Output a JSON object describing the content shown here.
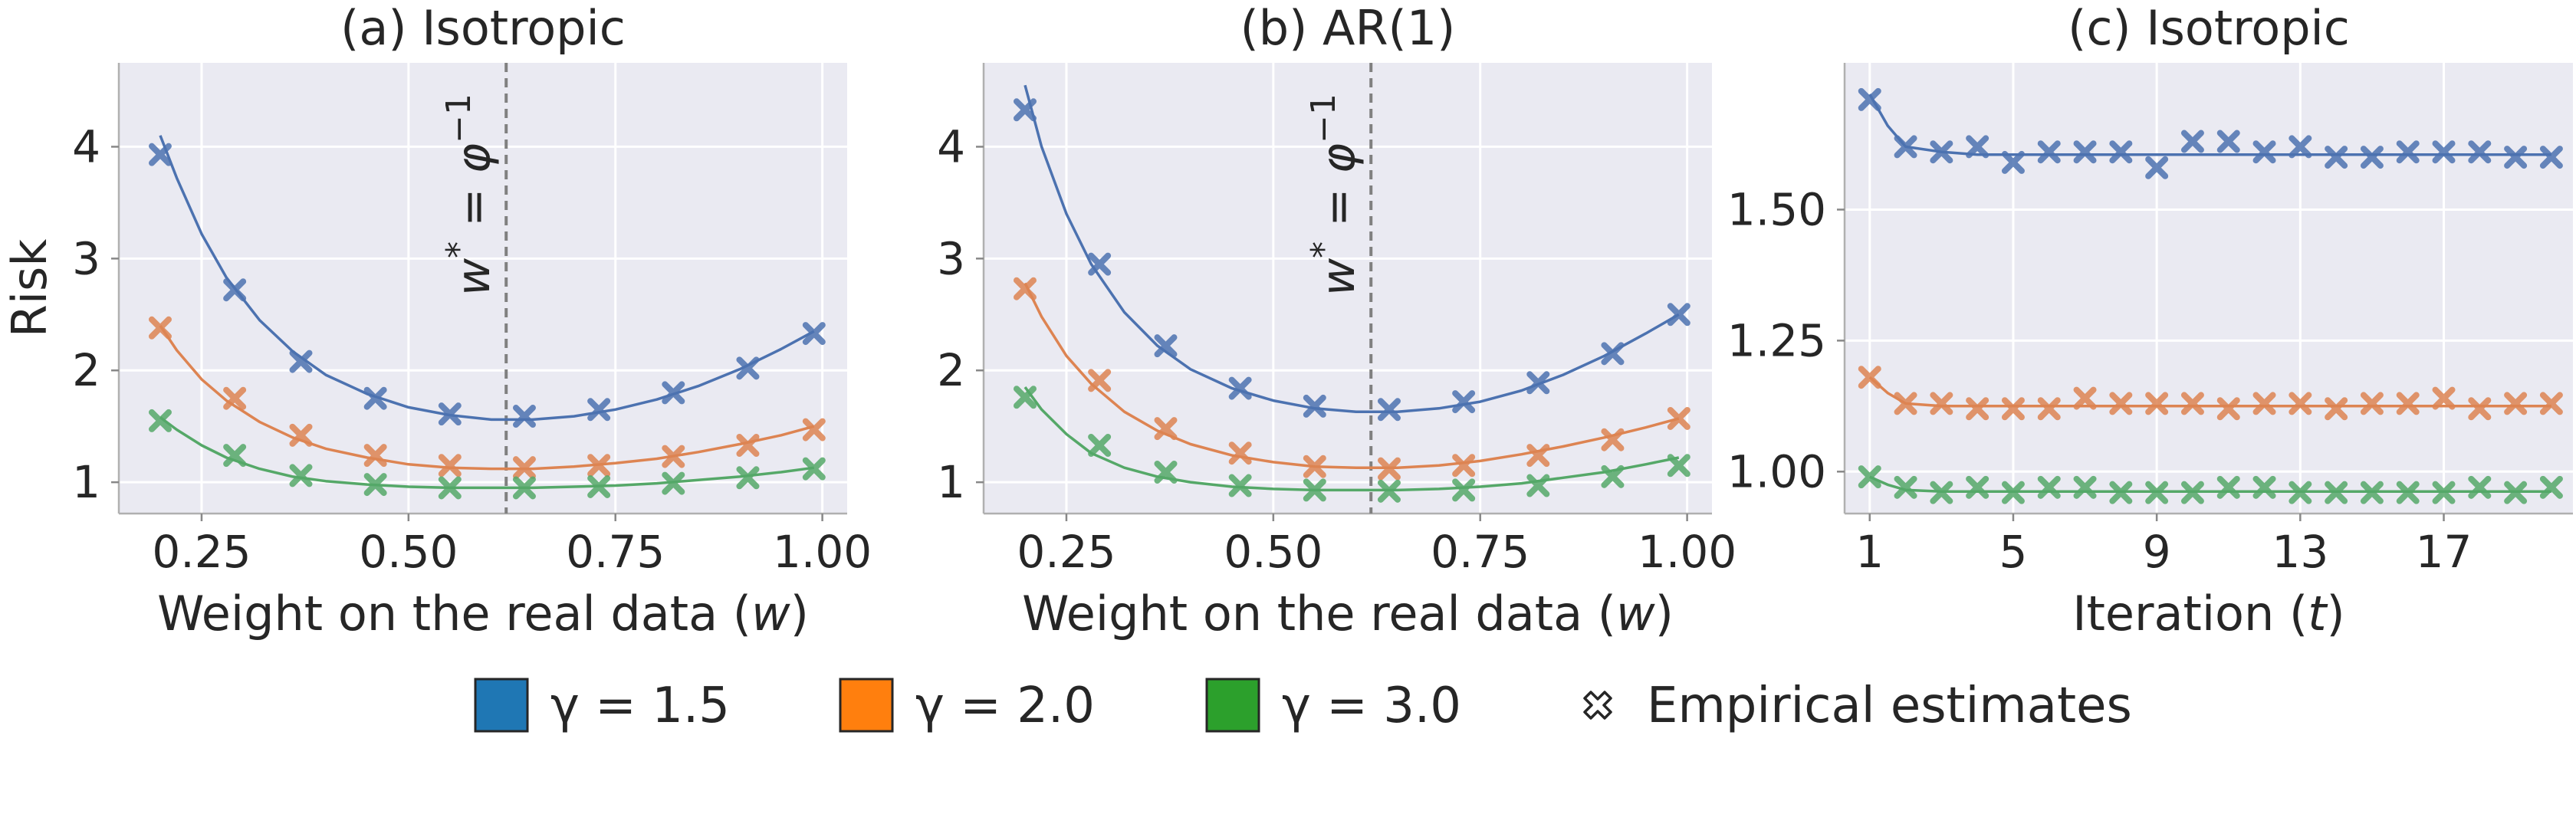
{
  "colors": {
    "plot_background": "#eaeaf2",
    "grid": "#ffffff",
    "gamma_1_5": "#4c72b0",
    "gamma_2_0": "#dd8452",
    "gamma_3_0": "#55a868",
    "legend_gamma_1_5": "#1f77b4",
    "legend_gamma_2_0": "#ff7f0e",
    "legend_gamma_3_0": "#2ca02c",
    "vline": "#808080"
  },
  "legend": {
    "entries": [
      {
        "label": "γ = 1.5",
        "color_key": "legend_gamma_1_5"
      },
      {
        "label": "γ = 2.0",
        "color_key": "legend_gamma_2_0"
      },
      {
        "label": "γ = 3.0",
        "color_key": "legend_gamma_3_0"
      }
    ],
    "marker_label": "Empirical estimates",
    "placement": "bottom-center"
  },
  "chart_data": [
    {
      "type": "line",
      "title": "(a) Isotropic",
      "xlabel": "Weight on the real data (w)",
      "ylabel": "Risk",
      "xlim": [
        0.15,
        1.03
      ],
      "ylim": [
        0.72,
        4.75
      ],
      "xticks": [
        0.25,
        0.5,
        0.75,
        1.0
      ],
      "xtick_labels": [
        "0.25",
        "0.50",
        "0.75",
        "1.00"
      ],
      "yticks": [
        1,
        2,
        3,
        4
      ],
      "ytick_labels": [
        "1",
        "2",
        "3",
        "4"
      ],
      "vline": {
        "x": 0.618,
        "label": "w* = φ⁻¹"
      },
      "series": [
        {
          "name": "γ = 1.5",
          "color_key": "gamma_1_5",
          "curve_x": [
            0.2,
            0.22,
            0.25,
            0.28,
            0.32,
            0.36,
            0.4,
            0.45,
            0.5,
            0.55,
            0.6,
            0.65,
            0.7,
            0.75,
            0.8,
            0.85,
            0.9,
            0.95,
            0.99
          ],
          "curve_y": [
            4.1,
            3.72,
            3.22,
            2.83,
            2.45,
            2.17,
            1.96,
            1.79,
            1.67,
            1.6,
            1.56,
            1.56,
            1.59,
            1.65,
            1.74,
            1.86,
            2.01,
            2.19,
            2.35
          ],
          "points_x": [
            0.2,
            0.29,
            0.37,
            0.46,
            0.55,
            0.64,
            0.73,
            0.82,
            0.91,
            0.99
          ],
          "points_y": [
            3.93,
            2.72,
            2.08,
            1.75,
            1.61,
            1.59,
            1.65,
            1.8,
            2.02,
            2.33
          ]
        },
        {
          "name": "γ = 2.0",
          "color_key": "gamma_2_0",
          "curve_x": [
            0.2,
            0.22,
            0.25,
            0.28,
            0.32,
            0.36,
            0.4,
            0.45,
            0.5,
            0.55,
            0.6,
            0.65,
            0.7,
            0.75,
            0.8,
            0.85,
            0.9,
            0.95,
            0.99
          ],
          "curve_y": [
            2.4,
            2.18,
            1.92,
            1.73,
            1.54,
            1.4,
            1.3,
            1.22,
            1.16,
            1.13,
            1.12,
            1.12,
            1.14,
            1.17,
            1.21,
            1.27,
            1.34,
            1.42,
            1.5
          ],
          "points_x": [
            0.2,
            0.29,
            0.37,
            0.46,
            0.55,
            0.64,
            0.73,
            0.82,
            0.91,
            0.99
          ],
          "points_y": [
            2.38,
            1.75,
            1.42,
            1.24,
            1.15,
            1.13,
            1.15,
            1.23,
            1.33,
            1.47
          ]
        },
        {
          "name": "γ = 3.0",
          "color_key": "gamma_3_0",
          "curve_x": [
            0.2,
            0.22,
            0.25,
            0.28,
            0.32,
            0.36,
            0.4,
            0.45,
            0.5,
            0.55,
            0.6,
            0.65,
            0.7,
            0.75,
            0.8,
            0.85,
            0.9,
            0.95,
            0.99
          ],
          "curve_y": [
            1.58,
            1.47,
            1.33,
            1.22,
            1.12,
            1.05,
            1.01,
            0.98,
            0.96,
            0.95,
            0.95,
            0.95,
            0.96,
            0.97,
            0.99,
            1.02,
            1.05,
            1.09,
            1.13
          ],
          "points_x": [
            0.2,
            0.29,
            0.37,
            0.46,
            0.55,
            0.64,
            0.73,
            0.82,
            0.91,
            0.99
          ],
          "points_y": [
            1.55,
            1.24,
            1.06,
            0.98,
            0.95,
            0.95,
            0.96,
            0.99,
            1.04,
            1.12
          ]
        }
      ]
    },
    {
      "type": "line",
      "title": "(b) AR(1)",
      "xlabel": "Weight on the real data (w)",
      "ylabel": "",
      "xlim": [
        0.15,
        1.03
      ],
      "ylim": [
        0.72,
        4.75
      ],
      "xticks": [
        0.25,
        0.5,
        0.75,
        1.0
      ],
      "xtick_labels": [
        "0.25",
        "0.50",
        "0.75",
        "1.00"
      ],
      "yticks": [
        1,
        2,
        3,
        4
      ],
      "ytick_labels": [
        "1",
        "2",
        "3",
        "4"
      ],
      "vline": {
        "x": 0.618,
        "label": "w* = φ⁻¹"
      },
      "series": [
        {
          "name": "γ = 1.5",
          "color_key": "gamma_1_5",
          "curve_x": [
            0.2,
            0.22,
            0.25,
            0.28,
            0.32,
            0.36,
            0.4,
            0.45,
            0.5,
            0.55,
            0.6,
            0.65,
            0.7,
            0.75,
            0.8,
            0.85,
            0.9,
            0.95,
            0.99
          ],
          "curve_y": [
            4.55,
            4.0,
            3.4,
            2.95,
            2.52,
            2.22,
            2.01,
            1.84,
            1.73,
            1.66,
            1.63,
            1.63,
            1.66,
            1.72,
            1.82,
            1.96,
            2.13,
            2.33,
            2.5
          ],
          "points_x": [
            0.2,
            0.29,
            0.37,
            0.46,
            0.55,
            0.64,
            0.73,
            0.82,
            0.91,
            0.99
          ],
          "points_y": [
            4.33,
            2.95,
            2.22,
            1.84,
            1.68,
            1.65,
            1.72,
            1.89,
            2.15,
            2.5
          ]
        },
        {
          "name": "γ = 2.0",
          "color_key": "gamma_2_0",
          "curve_x": [
            0.2,
            0.22,
            0.25,
            0.28,
            0.32,
            0.36,
            0.4,
            0.45,
            0.5,
            0.55,
            0.6,
            0.65,
            0.7,
            0.75,
            0.8,
            0.85,
            0.9,
            0.95,
            0.99
          ],
          "curve_y": [
            2.78,
            2.48,
            2.13,
            1.88,
            1.63,
            1.46,
            1.34,
            1.24,
            1.18,
            1.14,
            1.13,
            1.13,
            1.15,
            1.19,
            1.25,
            1.32,
            1.4,
            1.49,
            1.57
          ],
          "points_x": [
            0.2,
            0.29,
            0.37,
            0.46,
            0.55,
            0.64,
            0.73,
            0.82,
            0.91,
            0.99
          ],
          "points_y": [
            2.73,
            1.91,
            1.48,
            1.26,
            1.14,
            1.12,
            1.15,
            1.24,
            1.38,
            1.57
          ]
        },
        {
          "name": "γ = 3.0",
          "color_key": "gamma_3_0",
          "curve_x": [
            0.2,
            0.22,
            0.25,
            0.28,
            0.32,
            0.36,
            0.4,
            0.45,
            0.5,
            0.55,
            0.6,
            0.65,
            0.7,
            0.75,
            0.8,
            0.85,
            0.9,
            0.95,
            0.99
          ],
          "curve_y": [
            1.85,
            1.65,
            1.43,
            1.26,
            1.13,
            1.05,
            1.0,
            0.96,
            0.94,
            0.93,
            0.93,
            0.93,
            0.94,
            0.96,
            0.99,
            1.04,
            1.09,
            1.16,
            1.22
          ],
          "points_x": [
            0.2,
            0.29,
            0.37,
            0.46,
            0.55,
            0.64,
            0.73,
            0.82,
            0.91,
            0.99
          ],
          "points_y": [
            1.76,
            1.33,
            1.09,
            0.97,
            0.93,
            0.92,
            0.93,
            0.97,
            1.05,
            1.15
          ]
        }
      ]
    },
    {
      "type": "line",
      "title": "(c) Isotropic",
      "xlabel": "Iteration (t)",
      "ylabel": "",
      "xlim": [
        0.3,
        20.6
      ],
      "ylim": [
        0.92,
        1.78
      ],
      "xticks": [
        1,
        5,
        9,
        13,
        17
      ],
      "xtick_labels": [
        "1",
        "5",
        "9",
        "13",
        "17"
      ],
      "yticks": [
        1.0,
        1.25,
        1.5
      ],
      "ytick_labels": [
        "1.00",
        "1.25",
        "1.50"
      ],
      "series": [
        {
          "name": "γ = 1.5",
          "color_key": "gamma_1_5",
          "curve_x": [
            1,
            1.5,
            2,
            3,
            4,
            5,
            6,
            7,
            8,
            9,
            10,
            11,
            12,
            13,
            14,
            15,
            16,
            17,
            18,
            19,
            20
          ],
          "curve_y": [
            1.72,
            1.66,
            1.62,
            1.61,
            1.605,
            1.605,
            1.605,
            1.605,
            1.605,
            1.605,
            1.605,
            1.605,
            1.605,
            1.605,
            1.605,
            1.605,
            1.605,
            1.605,
            1.605,
            1.605,
            1.605
          ],
          "points_x": [
            1,
            2,
            3,
            4,
            5,
            6,
            7,
            8,
            9,
            10,
            11,
            12,
            13,
            14,
            15,
            16,
            17,
            18,
            19,
            20
          ],
          "points_y": [
            1.71,
            1.62,
            1.61,
            1.62,
            1.59,
            1.61,
            1.61,
            1.61,
            1.58,
            1.63,
            1.63,
            1.61,
            1.62,
            1.6,
            1.6,
            1.61,
            1.61,
            1.61,
            1.6,
            1.6
          ]
        },
        {
          "name": "γ = 2.0",
          "color_key": "gamma_2_0",
          "curve_x": [
            1,
            1.5,
            2,
            3,
            4,
            5,
            6,
            7,
            8,
            9,
            10,
            11,
            12,
            13,
            14,
            15,
            16,
            17,
            18,
            19,
            20
          ],
          "curve_y": [
            1.18,
            1.15,
            1.13,
            1.125,
            1.125,
            1.125,
            1.125,
            1.125,
            1.125,
            1.125,
            1.125,
            1.125,
            1.125,
            1.125,
            1.125,
            1.125,
            1.125,
            1.125,
            1.125,
            1.125,
            1.125
          ],
          "points_x": [
            1,
            2,
            3,
            4,
            5,
            6,
            7,
            8,
            9,
            10,
            11,
            12,
            13,
            14,
            15,
            16,
            17,
            18,
            19,
            20
          ],
          "points_y": [
            1.18,
            1.13,
            1.13,
            1.12,
            1.12,
            1.12,
            1.14,
            1.13,
            1.13,
            1.13,
            1.12,
            1.13,
            1.13,
            1.12,
            1.13,
            1.13,
            1.14,
            1.12,
            1.13,
            1.13
          ]
        },
        {
          "name": "γ = 3.0",
          "color_key": "gamma_3_0",
          "curve_x": [
            1,
            1.5,
            2,
            3,
            4,
            5,
            6,
            7,
            8,
            9,
            10,
            11,
            12,
            13,
            14,
            15,
            16,
            17,
            18,
            19,
            20
          ],
          "curve_y": [
            0.99,
            0.975,
            0.965,
            0.962,
            0.962,
            0.962,
            0.962,
            0.962,
            0.962,
            0.962,
            0.962,
            0.962,
            0.962,
            0.962,
            0.962,
            0.962,
            0.962,
            0.962,
            0.962,
            0.962,
            0.962
          ],
          "points_x": [
            1,
            2,
            3,
            4,
            5,
            6,
            7,
            8,
            9,
            10,
            11,
            12,
            13,
            14,
            15,
            16,
            17,
            18,
            19,
            20
          ],
          "points_y": [
            0.99,
            0.97,
            0.96,
            0.97,
            0.96,
            0.97,
            0.97,
            0.96,
            0.96,
            0.96,
            0.97,
            0.97,
            0.96,
            0.96,
            0.96,
            0.96,
            0.96,
            0.97,
            0.96,
            0.97
          ]
        }
      ]
    }
  ]
}
